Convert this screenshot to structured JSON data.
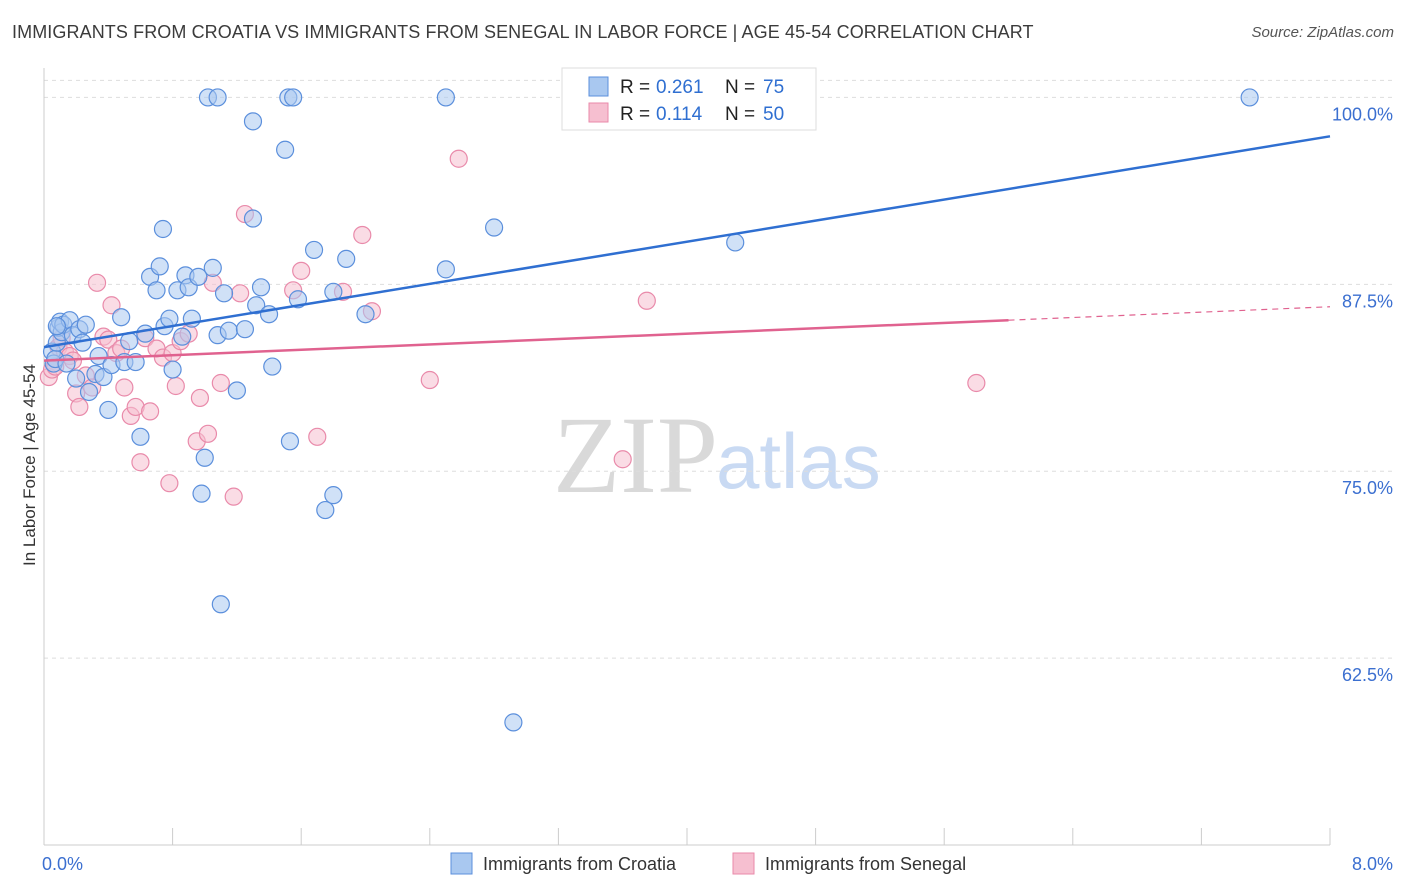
{
  "title": "IMMIGRANTS FROM CROATIA VS IMMIGRANTS FROM SENEGAL IN LABOR FORCE | AGE 45-54 CORRELATION CHART",
  "source": "Source: ZipAtlas.com",
  "watermark": {
    "zip": "ZIP",
    "atlas": "atlas"
  },
  "colors": {
    "croatia_fill": "#a9c8f0",
    "croatia_stroke": "#5b8fdc",
    "croatia_line": "#2f6fd1",
    "senegal_fill": "#f6bfd0",
    "senegal_stroke": "#e98aaa",
    "senegal_line": "#e0628f",
    "axis_text": "#3b6fd0",
    "grid": "#dddddd"
  },
  "legend": {
    "r_label": "R =",
    "n_label": "N =",
    "croatia": {
      "r": "0.261",
      "n": "75"
    },
    "senegal": {
      "r": "0.114",
      "n": "50"
    }
  },
  "chart_data": {
    "type": "scatter",
    "title": "IMMIGRANTS FROM CROATIA VS IMMIGRANTS FROM SENEGAL IN LABOR FORCE | AGE 45-54 CORRELATION CHART",
    "xlabel": "",
    "ylabel": "In Labor Force | Age 45-54",
    "xlim": [
      0,
      8
    ],
    "ylim": [
      50,
      101.5
    ],
    "x_tick_labels": [
      "0.0%",
      "8.0%"
    ],
    "y_ticks": [
      62.5,
      75.0,
      87.5,
      100.0
    ],
    "y_tick_labels": [
      "62.5%",
      "75.0%",
      "87.5%",
      "100.0%"
    ],
    "grid": true,
    "legend_position": "top-center",
    "series": [
      {
        "name": "Immigrants from Croatia",
        "r": 0.261,
        "n": 75,
        "trend": {
          "x0": 0.0,
          "y0": 83.3,
          "x1": 8.0,
          "y1": 97.4
        },
        "points": [
          [
            0.05,
            83.0
          ],
          [
            0.06,
            82.2
          ],
          [
            0.07,
            82.5
          ],
          [
            0.08,
            83.6
          ],
          [
            0.09,
            84.6
          ],
          [
            0.1,
            85.0
          ],
          [
            0.11,
            84.3
          ],
          [
            0.12,
            84.8
          ],
          [
            0.14,
            82.2
          ],
          [
            0.16,
            85.1
          ],
          [
            0.18,
            84.1
          ],
          [
            0.2,
            81.2
          ],
          [
            0.22,
            84.5
          ],
          [
            0.24,
            83.6
          ],
          [
            0.26,
            84.8
          ],
          [
            0.28,
            80.3
          ],
          [
            0.32,
            81.5
          ],
          [
            0.34,
            82.7
          ],
          [
            0.37,
            81.3
          ],
          [
            0.4,
            79.1
          ],
          [
            0.42,
            82.1
          ],
          [
            0.48,
            85.3
          ],
          [
            0.5,
            82.3
          ],
          [
            0.53,
            83.7
          ],
          [
            0.57,
            82.3
          ],
          [
            0.6,
            77.3
          ],
          [
            0.63,
            84.2
          ],
          [
            0.66,
            88.0
          ],
          [
            0.7,
            87.1
          ],
          [
            0.72,
            88.7
          ],
          [
            0.74,
            91.2
          ],
          [
            0.75,
            84.7
          ],
          [
            0.78,
            85.2
          ],
          [
            0.8,
            81.8
          ],
          [
            0.83,
            87.1
          ],
          [
            0.86,
            84.0
          ],
          [
            0.88,
            88.1
          ],
          [
            0.9,
            87.3
          ],
          [
            0.92,
            85.2
          ],
          [
            0.96,
            88.0
          ],
          [
            0.98,
            73.5
          ],
          [
            1.0,
            75.9
          ],
          [
            1.05,
            88.6
          ],
          [
            1.08,
            84.1
          ],
          [
            1.12,
            86.9
          ],
          [
            1.15,
            84.4
          ],
          [
            1.2,
            80.4
          ],
          [
            1.25,
            84.5
          ],
          [
            1.32,
            86.1
          ],
          [
            1.35,
            87.3
          ],
          [
            1.4,
            85.5
          ],
          [
            1.42,
            82.0
          ],
          [
            1.5,
            96.5
          ],
          [
            1.53,
            77.0
          ],
          [
            1.58,
            86.5
          ],
          [
            1.68,
            89.8
          ],
          [
            1.8,
            73.4
          ],
          [
            1.88,
            89.2
          ],
          [
            2.0,
            85.5
          ],
          [
            2.5,
            88.5
          ],
          [
            2.8,
            91.3
          ],
          [
            1.1,
            66.1
          ],
          [
            2.92,
            58.2
          ],
          [
            1.75,
            72.4
          ],
          [
            1.3,
            91.9
          ],
          [
            1.3,
            98.4
          ],
          [
            1.02,
            100.0
          ],
          [
            1.08,
            100.0
          ],
          [
            1.52,
            100.0
          ],
          [
            1.55,
            100.0
          ],
          [
            2.5,
            100.0
          ],
          [
            4.3,
            90.3
          ],
          [
            7.5,
            100.0
          ],
          [
            0.08,
            84.7
          ],
          [
            1.8,
            87.0
          ]
        ]
      },
      {
        "name": "Immigrants from Senegal",
        "r": 0.114,
        "n": 50,
        "trend": {
          "x0": 0.0,
          "y0": 82.4,
          "x1": 6.0,
          "y1": 85.1,
          "dashed_to_x": 8.0,
          "dashed_to_y": 86.0
        },
        "points": [
          [
            0.03,
            81.3
          ],
          [
            0.05,
            81.8
          ],
          [
            0.07,
            82.0
          ],
          [
            0.09,
            83.3
          ],
          [
            0.11,
            83.9
          ],
          [
            0.13,
            83.0
          ],
          [
            0.16,
            82.7
          ],
          [
            0.18,
            82.4
          ],
          [
            0.2,
            80.2
          ],
          [
            0.22,
            79.3
          ],
          [
            0.26,
            81.4
          ],
          [
            0.3,
            80.6
          ],
          [
            0.33,
            87.6
          ],
          [
            0.37,
            84.0
          ],
          [
            0.4,
            83.8
          ],
          [
            0.42,
            86.1
          ],
          [
            0.45,
            82.9
          ],
          [
            0.48,
            83.2
          ],
          [
            0.5,
            80.6
          ],
          [
            0.54,
            78.7
          ],
          [
            0.57,
            79.3
          ],
          [
            0.6,
            75.6
          ],
          [
            0.63,
            83.9
          ],
          [
            0.66,
            79.0
          ],
          [
            0.7,
            83.2
          ],
          [
            0.74,
            82.6
          ],
          [
            0.78,
            74.2
          ],
          [
            0.8,
            82.9
          ],
          [
            0.82,
            80.7
          ],
          [
            0.85,
            83.7
          ],
          [
            0.9,
            84.2
          ],
          [
            0.95,
            77.0
          ],
          [
            0.97,
            79.9
          ],
          [
            1.02,
            77.5
          ],
          [
            1.05,
            87.6
          ],
          [
            1.1,
            80.9
          ],
          [
            1.18,
            73.3
          ],
          [
            1.22,
            86.9
          ],
          [
            1.25,
            92.2
          ],
          [
            1.55,
            87.1
          ],
          [
            1.6,
            88.4
          ],
          [
            1.7,
            77.3
          ],
          [
            1.86,
            87.0
          ],
          [
            1.98,
            90.8
          ],
          [
            2.04,
            85.7
          ],
          [
            2.4,
            81.1
          ],
          [
            2.58,
            95.9
          ],
          [
            3.6,
            75.8
          ],
          [
            3.75,
            86.4
          ],
          [
            5.8,
            80.9
          ]
        ]
      }
    ]
  },
  "bottom_legend": {
    "croatia": "Immigrants from Croatia",
    "senegal": "Immigrants from Senegal"
  }
}
